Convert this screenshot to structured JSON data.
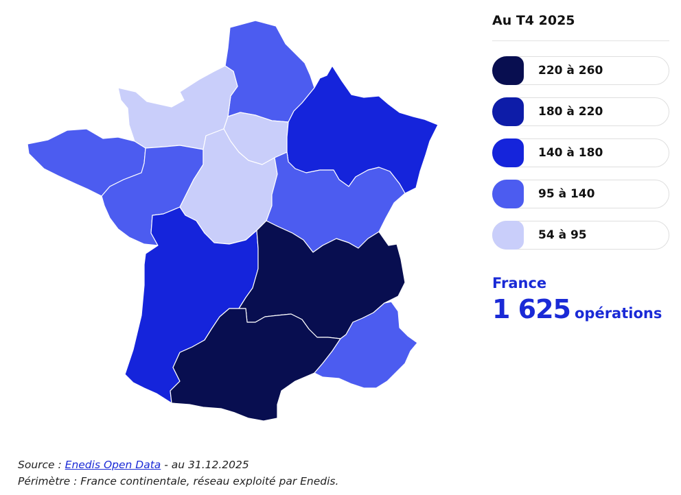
{
  "legend": {
    "title": "Au T4 2025",
    "items": [
      {
        "label": "220 à 260",
        "color": "#080e50"
      },
      {
        "label": "180 à 220",
        "color": "#0d1ca8"
      },
      {
        "label": "140 à 180",
        "color": "#1524db"
      },
      {
        "label": "95 à 140",
        "color": "#4c5cf0"
      },
      {
        "label": "54 à 95",
        "color": "#c9cefa"
      }
    ]
  },
  "total": {
    "label": "France",
    "value": "1 625",
    "unit": "opérations"
  },
  "footer": {
    "source_prefix": "Source : ",
    "source_link": "Enedis Open Data",
    "source_suffix": " - au 31.12.2025",
    "scope": "Périmètre : France continentale, réseau exploité par Enedis."
  },
  "map": {
    "regions": [
      {
        "id": "hauts-de-france",
        "bin": 3
      },
      {
        "id": "normandie",
        "bin": 4
      },
      {
        "id": "ile-de-france",
        "bin": 4
      },
      {
        "id": "grand-est",
        "bin": 2
      },
      {
        "id": "bretagne",
        "bin": 3
      },
      {
        "id": "pays-de-la-loire",
        "bin": 3
      },
      {
        "id": "centre-val-de-loire",
        "bin": 4
      },
      {
        "id": "bourgogne-franche-comte",
        "bin": 3
      },
      {
        "id": "nouvelle-aquitaine",
        "bin": 2
      },
      {
        "id": "auvergne-rhone-alpes",
        "bin": 0
      },
      {
        "id": "occitanie",
        "bin": 0
      },
      {
        "id": "provence-alpes-cote-d-azur",
        "bin": 3
      }
    ]
  }
}
